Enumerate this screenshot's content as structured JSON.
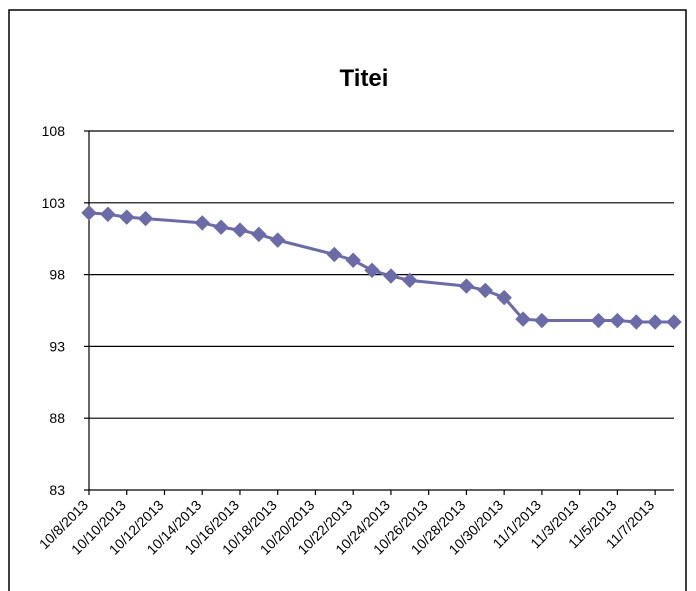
{
  "chart_data": {
    "type": "line",
    "title": "Titei",
    "xlabel": "",
    "ylabel": "",
    "ylim": [
      83,
      108
    ],
    "yticks": [
      83,
      88,
      93,
      98,
      103,
      108
    ],
    "xlim": [
      "10/8/2013",
      "11/8/2013"
    ],
    "xtick_labels": [
      "10/8/2013",
      "10/10/2013",
      "10/12/2013",
      "10/14/2013",
      "10/16/2013",
      "10/18/2013",
      "10/20/2013",
      "10/22/2013",
      "10/24/2013",
      "10/26/2013",
      "10/28/2013",
      "10/30/2013",
      "11/1/2013",
      "11/3/2013",
      "11/5/2013",
      "11/7/2013"
    ],
    "grid": "horizontal",
    "legend": "none",
    "series_color": "#6B6BA8",
    "marker": "diamond",
    "series": [
      {
        "x": [
          "10/8/2013",
          "10/9/2013",
          "10/10/2013",
          "10/11/2013",
          "10/14/2013",
          "10/15/2013",
          "10/16/2013",
          "10/17/2013",
          "10/18/2013",
          "10/21/2013",
          "10/22/2013",
          "10/23/2013",
          "10/24/2013",
          "10/25/2013",
          "10/28/2013",
          "10/29/2013",
          "10/30/2013",
          "10/31/2013",
          "11/1/2013",
          "11/4/2013",
          "11/5/2013",
          "11/6/2013",
          "11/7/2013",
          "11/8/2013"
        ],
        "values": [
          102.3,
          102.2,
          102.0,
          101.9,
          101.6,
          101.3,
          101.1,
          100.8,
          100.4,
          99.4,
          99.0,
          98.3,
          97.9,
          97.6,
          97.2,
          96.9,
          96.4,
          94.9,
          94.8,
          94.8,
          94.8,
          94.7,
          94.7,
          94.7
        ]
      }
    ]
  }
}
